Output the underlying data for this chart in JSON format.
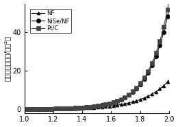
{
  "title": "",
  "xlabel": "",
  "ylabel": "电流密度（毫安/厘米²）",
  "xlim": [
    1.0,
    2.0
  ],
  "ylim": [
    -2,
    55
  ],
  "yticks": [
    0,
    20,
    40
  ],
  "xticks": [
    1.0,
    1.2,
    1.4,
    1.6,
    1.8,
    2.0
  ],
  "legend_labels": [
    "NF",
    "NiSe/NF",
    "Pt/C"
  ],
  "bg_color": "#ffffff",
  "marker_interval": 8
}
